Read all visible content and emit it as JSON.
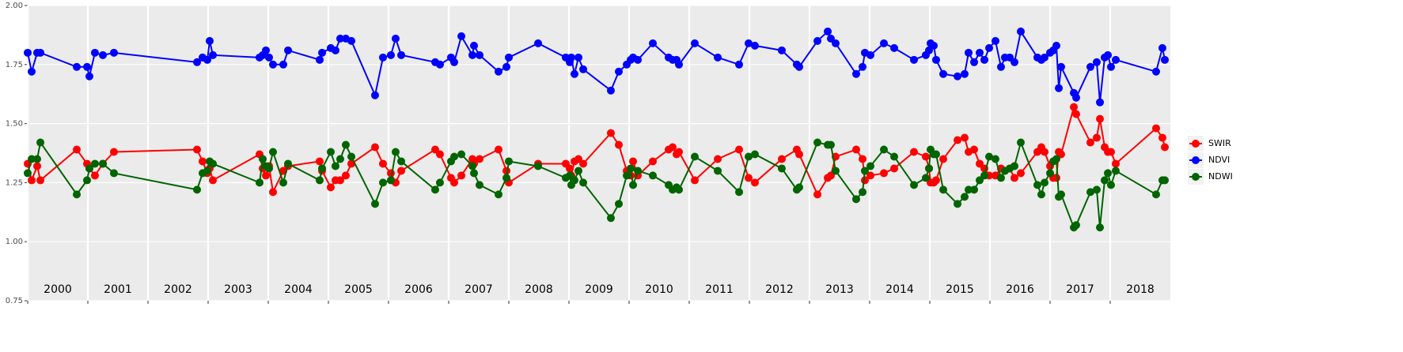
{
  "chart_data": {
    "type": "line",
    "x": [
      2000.0,
      2000.066,
      2000.158,
      2000.211,
      2000.816,
      2000.987,
      2001.026,
      2001.118,
      2001.25,
      2001.434,
      2002.816,
      2002.908,
      2002.987,
      2003.026,
      2003.079,
      2003.855,
      2003.908,
      2003.961,
      2004.013,
      2004.079,
      2004.25,
      2004.329,
      2004.855,
      2004.895,
      2005.039,
      2005.118,
      2005.197,
      2005.289,
      2005.382,
      2005.776,
      2005.908,
      2006.039,
      2006.118,
      2006.211,
      2006.776,
      2006.855,
      2007.039,
      2007.092,
      2007.211,
      2007.395,
      2007.421,
      2007.513,
      2007.829,
      2007.961,
      2008.0,
      2008.487,
      2008.947,
      2009.013,
      2009.039,
      2009.092,
      2009.158,
      2009.237,
      2009.697,
      2009.829,
      2009.961,
      2010.026,
      2010.066,
      2010.145,
      2010.395,
      2010.658,
      2010.724,
      2010.789,
      2010.829,
      2011.092,
      2011.474,
      2011.829,
      2011.987,
      2012.092,
      2012.539,
      2012.789,
      2012.829,
      2013.132,
      2013.303,
      2013.355,
      2013.434,
      2013.776,
      2013.882,
      2013.921,
      2014.013,
      2014.237,
      2014.408,
      2014.737,
      2014.934,
      2014.987,
      2015.013,
      2015.066,
      2015.105,
      2015.224,
      2015.461,
      2015.579,
      2015.645,
      2015.737,
      2015.829,
      2015.908,
      2015.987,
      2016.092,
      2016.184,
      2016.25,
      2016.329,
      2016.408,
      2016.513,
      2016.789,
      2016.855,
      2016.908,
      2017.0,
      2017.053,
      2017.105,
      2017.145,
      2017.184,
      2017.395,
      2017.434,
      2017.671,
      2017.776,
      2017.829,
      2017.908,
      2017.961,
      2018.013,
      2018.092,
      2018.763,
      2018.868,
      2018.908
    ],
    "series": [
      {
        "name": "SWIR",
        "color": "#ff0000",
        "values": [
          1.33,
          1.26,
          1.32,
          1.26,
          1.39,
          1.33,
          1.31,
          1.28,
          1.33,
          1.38,
          1.39,
          1.34,
          1.29,
          1.31,
          1.26,
          1.37,
          1.31,
          1.28,
          1.32,
          1.21,
          1.3,
          1.32,
          1.34,
          1.3,
          1.23,
          1.26,
          1.26,
          1.28,
          1.33,
          1.4,
          1.33,
          1.29,
          1.25,
          1.3,
          1.39,
          1.37,
          1.27,
          1.25,
          1.28,
          1.35,
          1.33,
          1.35,
          1.39,
          1.3,
          1.25,
          1.33,
          1.33,
          1.31,
          1.28,
          1.34,
          1.35,
          1.33,
          1.46,
          1.41,
          1.3,
          1.28,
          1.34,
          1.28,
          1.34,
          1.39,
          1.4,
          1.37,
          1.38,
          1.26,
          1.35,
          1.39,
          1.27,
          1.25,
          1.35,
          1.39,
          1.37,
          1.2,
          1.27,
          1.28,
          1.36,
          1.39,
          1.35,
          1.26,
          1.28,
          1.29,
          1.31,
          1.38,
          1.36,
          1.31,
          1.25,
          1.25,
          1.26,
          1.35,
          1.43,
          1.44,
          1.38,
          1.39,
          1.33,
          1.31,
          1.28,
          1.28,
          1.31,
          1.3,
          1.31,
          1.27,
          1.29,
          1.38,
          1.4,
          1.38,
          1.32,
          1.27,
          1.27,
          1.38,
          1.37,
          1.57,
          1.54,
          1.42,
          1.44,
          1.52,
          1.4,
          1.38,
          1.38,
          1.33,
          1.48,
          1.44,
          1.4
        ]
      },
      {
        "name": "NDVI",
        "color": "#0000ff",
        "values": [
          1.8,
          1.72,
          1.8,
          1.8,
          1.74,
          1.74,
          1.7,
          1.8,
          1.79,
          1.8,
          1.76,
          1.78,
          1.77,
          1.85,
          1.79,
          1.78,
          1.79,
          1.81,
          1.78,
          1.75,
          1.75,
          1.81,
          1.77,
          1.8,
          1.82,
          1.81,
          1.86,
          1.86,
          1.85,
          1.62,
          1.78,
          1.79,
          1.86,
          1.79,
          1.76,
          1.75,
          1.78,
          1.76,
          1.87,
          1.79,
          1.83,
          1.79,
          1.72,
          1.74,
          1.78,
          1.84,
          1.78,
          1.76,
          1.78,
          1.71,
          1.78,
          1.73,
          1.64,
          1.72,
          1.75,
          1.77,
          1.78,
          1.77,
          1.84,
          1.78,
          1.77,
          1.77,
          1.75,
          1.84,
          1.78,
          1.75,
          1.84,
          1.83,
          1.81,
          1.75,
          1.74,
          1.85,
          1.89,
          1.86,
          1.84,
          1.71,
          1.74,
          1.8,
          1.79,
          1.84,
          1.82,
          1.77,
          1.79,
          1.81,
          1.84,
          1.83,
          1.77,
          1.71,
          1.7,
          1.71,
          1.8,
          1.76,
          1.8,
          1.77,
          1.82,
          1.85,
          1.74,
          1.78,
          1.78,
          1.76,
          1.89,
          1.78,
          1.77,
          1.78,
          1.8,
          1.81,
          1.83,
          1.65,
          1.74,
          1.63,
          1.61,
          1.74,
          1.76,
          1.59,
          1.78,
          1.79,
          1.74,
          1.77,
          1.72,
          1.82,
          1.77
        ]
      },
      {
        "name": "NDWI",
        "color": "#006400",
        "values": [
          1.29,
          1.35,
          1.35,
          1.42,
          1.2,
          1.26,
          1.31,
          1.33,
          1.33,
          1.29,
          1.22,
          1.29,
          1.3,
          1.34,
          1.33,
          1.25,
          1.35,
          1.32,
          1.31,
          1.38,
          1.25,
          1.33,
          1.26,
          1.31,
          1.38,
          1.32,
          1.35,
          1.41,
          1.36,
          1.16,
          1.25,
          1.26,
          1.38,
          1.34,
          1.22,
          1.25,
          1.34,
          1.36,
          1.37,
          1.32,
          1.29,
          1.24,
          1.2,
          1.27,
          1.34,
          1.32,
          1.27,
          1.28,
          1.24,
          1.26,
          1.3,
          1.25,
          1.1,
          1.16,
          1.28,
          1.31,
          1.24,
          1.3,
          1.28,
          1.24,
          1.22,
          1.23,
          1.22,
          1.36,
          1.3,
          1.21,
          1.36,
          1.37,
          1.31,
          1.22,
          1.23,
          1.42,
          1.41,
          1.41,
          1.3,
          1.18,
          1.21,
          1.3,
          1.32,
          1.39,
          1.36,
          1.24,
          1.27,
          1.31,
          1.39,
          1.37,
          1.37,
          1.22,
          1.16,
          1.19,
          1.22,
          1.22,
          1.26,
          1.28,
          1.36,
          1.35,
          1.27,
          1.3,
          1.31,
          1.32,
          1.42,
          1.24,
          1.2,
          1.25,
          1.29,
          1.34,
          1.35,
          1.19,
          1.2,
          1.06,
          1.07,
          1.21,
          1.22,
          1.06,
          1.26,
          1.29,
          1.24,
          1.3,
          1.2,
          1.26,
          1.26
        ]
      }
    ],
    "xlim": [
      2000,
      2019
    ],
    "xticks": [
      2000,
      2001,
      2002,
      2003,
      2004,
      2005,
      2006,
      2007,
      2008,
      2009,
      2010,
      2011,
      2012,
      2013,
      2014,
      2015,
      2016,
      2017,
      2018
    ],
    "ylim": [
      0.75,
      2
    ],
    "yticks": [
      0.75,
      {
        "value": 1,
        "label": "1.00"
      },
      1.25,
      {
        "value": 1.5,
        "label": "1.50"
      },
      1.75,
      {
        "value": 2,
        "label": "2.00"
      }
    ],
    "grid": true,
    "legend": "right"
  }
}
